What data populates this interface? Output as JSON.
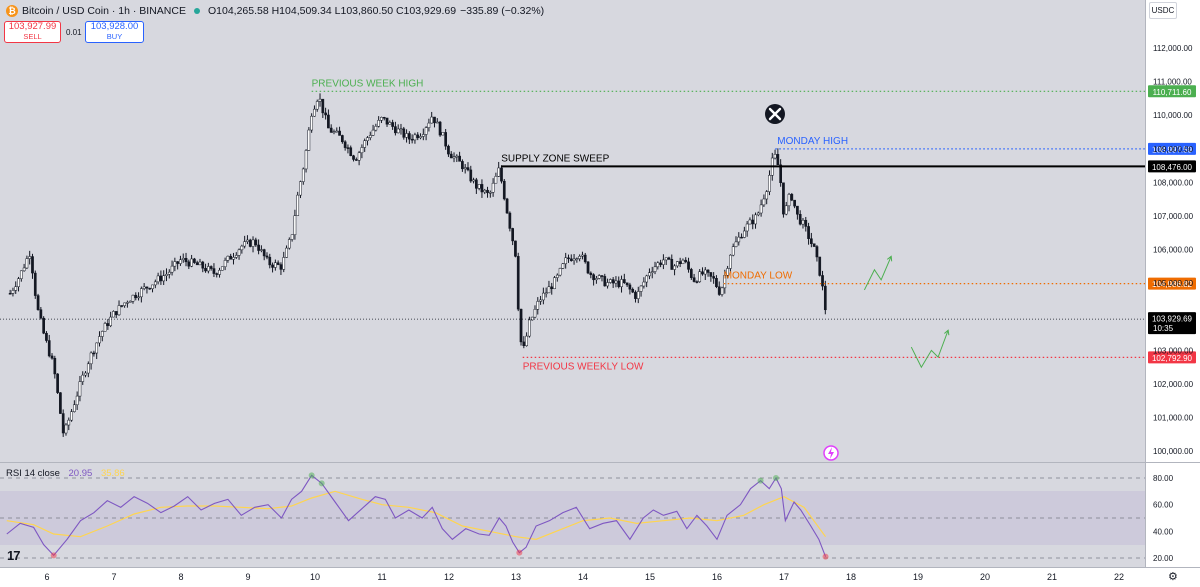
{
  "header": {
    "symbol": "Bitcoin / USD Coin · 1h · BINANCE",
    "ohlc": "O104,265.58 H104,509.34 L103,860.50 C103,929.69",
    "change": "−335.89 (−0.32%)",
    "currency": "USDC"
  },
  "trade": {
    "sell_price": "103,927.99",
    "sell_label": "SELL",
    "spread": "0.01",
    "buy_price": "103,928.00",
    "buy_label": "BUY"
  },
  "rsi": {
    "label": "RSI 14 close",
    "value": "20.95",
    "ma_value": "35.86",
    "ticks": [
      "80.00",
      "60.00",
      "40.00",
      "20.00"
    ]
  },
  "colors": {
    "green": "#4caf50",
    "blue": "#2962ff",
    "orange": "#ef6c00",
    "red": "#f23645",
    "black": "#000000",
    "rsi": "#7e57c2",
    "rsi_ma": "#ffd54f"
  },
  "chart_data": {
    "type": "candlestick",
    "x_ticks": [
      "6",
      "7",
      "8",
      "9",
      "10",
      "11",
      "12",
      "13",
      "14",
      "15",
      "16",
      "17",
      "18",
      "19",
      "20",
      "21",
      "22"
    ],
    "y_ticks": [
      "112,000.00",
      "111,000.00",
      "110,000.00",
      "109,000.00",
      "108,000.00",
      "107,000.00",
      "106,000.00",
      "105,000.00",
      "104,000.00",
      "103,000.00",
      "102,000.00",
      "101,000.00",
      "100,000.00"
    ],
    "ylim": [
      99500,
      112600
    ],
    "last_price": {
      "value": 103929.69,
      "label": "103,929.69",
      "countdown": "10:35"
    },
    "levels": [
      {
        "name": "PREVIOUS WEEK HIGH",
        "value": 110711.6,
        "label": "110,711.60",
        "color": "#4caf50",
        "style": "dotted",
        "from_day": 9.95,
        "text_day": 9.95
      },
      {
        "name": "MONDAY HIGH",
        "value": 108997.59,
        "label": "108,997.59",
        "color": "#2962ff",
        "style": "dotted",
        "from_day": 16.87,
        "text_day": 16.9
      },
      {
        "name": "SUPPLY ZONE SWEEP",
        "value": 108476.0,
        "label": "108,476.00",
        "color": "#000000",
        "style": "solid",
        "from_day": 12.78,
        "text_day": 12.78
      },
      {
        "name": "MONDAY LOW",
        "value": 104986.82,
        "label": "104,986.82",
        "color": "#ef6c00",
        "style": "dotted",
        "from_day": 16.1,
        "text_day": 16.1
      },
      {
        "name": "PREVIOUS WEEKLY LOW",
        "value": 102792.9,
        "label": "102,792.90",
        "color": "#f23645",
        "style": "dotted",
        "from_day": 13.1,
        "text_day": 13.1
      }
    ],
    "price_path": [
      [
        5.45,
        104700
      ],
      [
        5.6,
        105250
      ],
      [
        5.75,
        105950
      ],
      [
        5.85,
        104300
      ],
      [
        5.95,
        103500
      ],
      [
        6.1,
        102500
      ],
      [
        6.25,
        100450
      ],
      [
        6.4,
        101400
      ],
      [
        6.6,
        102600
      ],
      [
        6.8,
        103500
      ],
      [
        7.0,
        104100
      ],
      [
        7.2,
        104500
      ],
      [
        7.5,
        104900
      ],
      [
        7.8,
        105300
      ],
      [
        8.0,
        105700
      ],
      [
        8.3,
        105500
      ],
      [
        8.5,
        105300
      ],
      [
        8.7,
        105700
      ],
      [
        8.9,
        106100
      ],
      [
        9.1,
        106250
      ],
      [
        9.3,
        105600
      ],
      [
        9.5,
        105500
      ],
      [
        9.65,
        106400
      ],
      [
        9.75,
        107700
      ],
      [
        9.85,
        108700
      ],
      [
        9.95,
        110100
      ],
      [
        10.05,
        110600
      ],
      [
        10.2,
        109600
      ],
      [
        10.4,
        109300
      ],
      [
        10.6,
        108700
      ],
      [
        10.8,
        109400
      ],
      [
        11.0,
        109900
      ],
      [
        11.2,
        109600
      ],
      [
        11.4,
        109300
      ],
      [
        11.6,
        109500
      ],
      [
        11.75,
        110000
      ],
      [
        11.9,
        109400
      ],
      [
        12.0,
        108900
      ],
      [
        12.2,
        108500
      ],
      [
        12.4,
        107900
      ],
      [
        12.6,
        107600
      ],
      [
        12.75,
        108400
      ],
      [
        12.9,
        106800
      ],
      [
        13.0,
        105800
      ],
      [
        13.05,
        103600
      ],
      [
        13.1,
        102900
      ],
      [
        13.2,
        103800
      ],
      [
        13.35,
        104500
      ],
      [
        13.6,
        105100
      ],
      [
        13.75,
        105700
      ],
      [
        13.95,
        105900
      ],
      [
        14.1,
        105300
      ],
      [
        14.35,
        105000
      ],
      [
        14.6,
        105000
      ],
      [
        14.8,
        104600
      ],
      [
        15.0,
        105400
      ],
      [
        15.2,
        105700
      ],
      [
        15.35,
        105500
      ],
      [
        15.5,
        105700
      ],
      [
        15.65,
        105100
      ],
      [
        15.8,
        105300
      ],
      [
        15.95,
        105100
      ],
      [
        16.05,
        104700
      ],
      [
        16.2,
        105900
      ],
      [
        16.4,
        106600
      ],
      [
        16.6,
        107000
      ],
      [
        16.75,
        107900
      ],
      [
        16.85,
        108850
      ],
      [
        16.93,
        108400
      ],
      [
        17.0,
        107000
      ],
      [
        17.1,
        107700
      ],
      [
        17.2,
        107000
      ],
      [
        17.3,
        106700
      ],
      [
        17.45,
        106000
      ],
      [
        17.55,
        105200
      ],
      [
        17.62,
        104200
      ]
    ],
    "projection_arrows": [
      {
        "color": "#4caf50",
        "points": [
          [
            18.2,
            104800
          ],
          [
            18.35,
            105400
          ],
          [
            18.45,
            105100
          ],
          [
            18.6,
            105800
          ]
        ]
      },
      {
        "color": "#4caf50",
        "points": [
          [
            18.9,
            103100
          ],
          [
            19.05,
            102500
          ],
          [
            19.2,
            103000
          ],
          [
            19.3,
            102800
          ],
          [
            19.45,
            103600
          ]
        ]
      }
    ],
    "rsi_series": [
      [
        5.4,
        38
      ],
      [
        5.6,
        46
      ],
      [
        5.8,
        43
      ],
      [
        5.95,
        30
      ],
      [
        6.1,
        22
      ],
      [
        6.3,
        34
      ],
      [
        6.5,
        48
      ],
      [
        6.7,
        54
      ],
      [
        6.9,
        63
      ],
      [
        7.1,
        58
      ],
      [
        7.3,
        66
      ],
      [
        7.5,
        61
      ],
      [
        7.7,
        54
      ],
      [
        7.9,
        59
      ],
      [
        8.1,
        66
      ],
      [
        8.3,
        56
      ],
      [
        8.5,
        61
      ],
      [
        8.7,
        64
      ],
      [
        8.9,
        52
      ],
      [
        9.1,
        58
      ],
      [
        9.3,
        60
      ],
      [
        9.5,
        50
      ],
      [
        9.65,
        64
      ],
      [
        9.8,
        70
      ],
      [
        9.95,
        82
      ],
      [
        10.1,
        76
      ],
      [
        10.3,
        62
      ],
      [
        10.5,
        48
      ],
      [
        10.7,
        57
      ],
      [
        10.9,
        66
      ],
      [
        11.05,
        64
      ],
      [
        11.2,
        50
      ],
      [
        11.4,
        56
      ],
      [
        11.6,
        50
      ],
      [
        11.75,
        58
      ],
      [
        11.9,
        42
      ],
      [
        12.05,
        34
      ],
      [
        12.25,
        42
      ],
      [
        12.45,
        38
      ],
      [
        12.6,
        37
      ],
      [
        12.75,
        50
      ],
      [
        12.85,
        44
      ],
      [
        12.95,
        32
      ],
      [
        13.05,
        24
      ],
      [
        13.15,
        28
      ],
      [
        13.3,
        44
      ],
      [
        13.5,
        48
      ],
      [
        13.7,
        54
      ],
      [
        13.9,
        58
      ],
      [
        14.1,
        42
      ],
      [
        14.3,
        46
      ],
      [
        14.5,
        48
      ],
      [
        14.7,
        34
      ],
      [
        14.9,
        50
      ],
      [
        15.05,
        56
      ],
      [
        15.2,
        52
      ],
      [
        15.4,
        55
      ],
      [
        15.55,
        42
      ],
      [
        15.7,
        52
      ],
      [
        15.85,
        44
      ],
      [
        16.0,
        34
      ],
      [
        16.15,
        52
      ],
      [
        16.35,
        60
      ],
      [
        16.5,
        72
      ],
      [
        16.65,
        78
      ],
      [
        16.78,
        72
      ],
      [
        16.88,
        80
      ],
      [
        16.96,
        72
      ],
      [
        17.02,
        48
      ],
      [
        17.15,
        62
      ],
      [
        17.25,
        56
      ],
      [
        17.4,
        44
      ],
      [
        17.52,
        34
      ],
      [
        17.62,
        21
      ]
    ],
    "rsi_ma_series": [
      [
        5.4,
        48
      ],
      [
        5.8,
        45
      ],
      [
        6.1,
        38
      ],
      [
        6.5,
        36
      ],
      [
        6.9,
        44
      ],
      [
        7.3,
        53
      ],
      [
        7.7,
        58
      ],
      [
        8.1,
        59
      ],
      [
        8.5,
        59
      ],
      [
        8.9,
        58
      ],
      [
        9.3,
        57
      ],
      [
        9.65,
        59
      ],
      [
        9.95,
        65
      ],
      [
        10.3,
        70
      ],
      [
        10.7,
        64
      ],
      [
        11.0,
        60
      ],
      [
        11.4,
        58
      ],
      [
        11.8,
        54
      ],
      [
        12.2,
        44
      ],
      [
        12.6,
        40
      ],
      [
        13.0,
        36
      ],
      [
        13.3,
        34
      ],
      [
        13.6,
        40
      ],
      [
        14.0,
        48
      ],
      [
        14.4,
        50
      ],
      [
        14.8,
        46
      ],
      [
        15.2,
        48
      ],
      [
        15.6,
        50
      ],
      [
        16.0,
        48
      ],
      [
        16.4,
        52
      ],
      [
        16.7,
        60
      ],
      [
        17.0,
        66
      ],
      [
        17.3,
        58
      ],
      [
        17.62,
        36
      ]
    ]
  }
}
